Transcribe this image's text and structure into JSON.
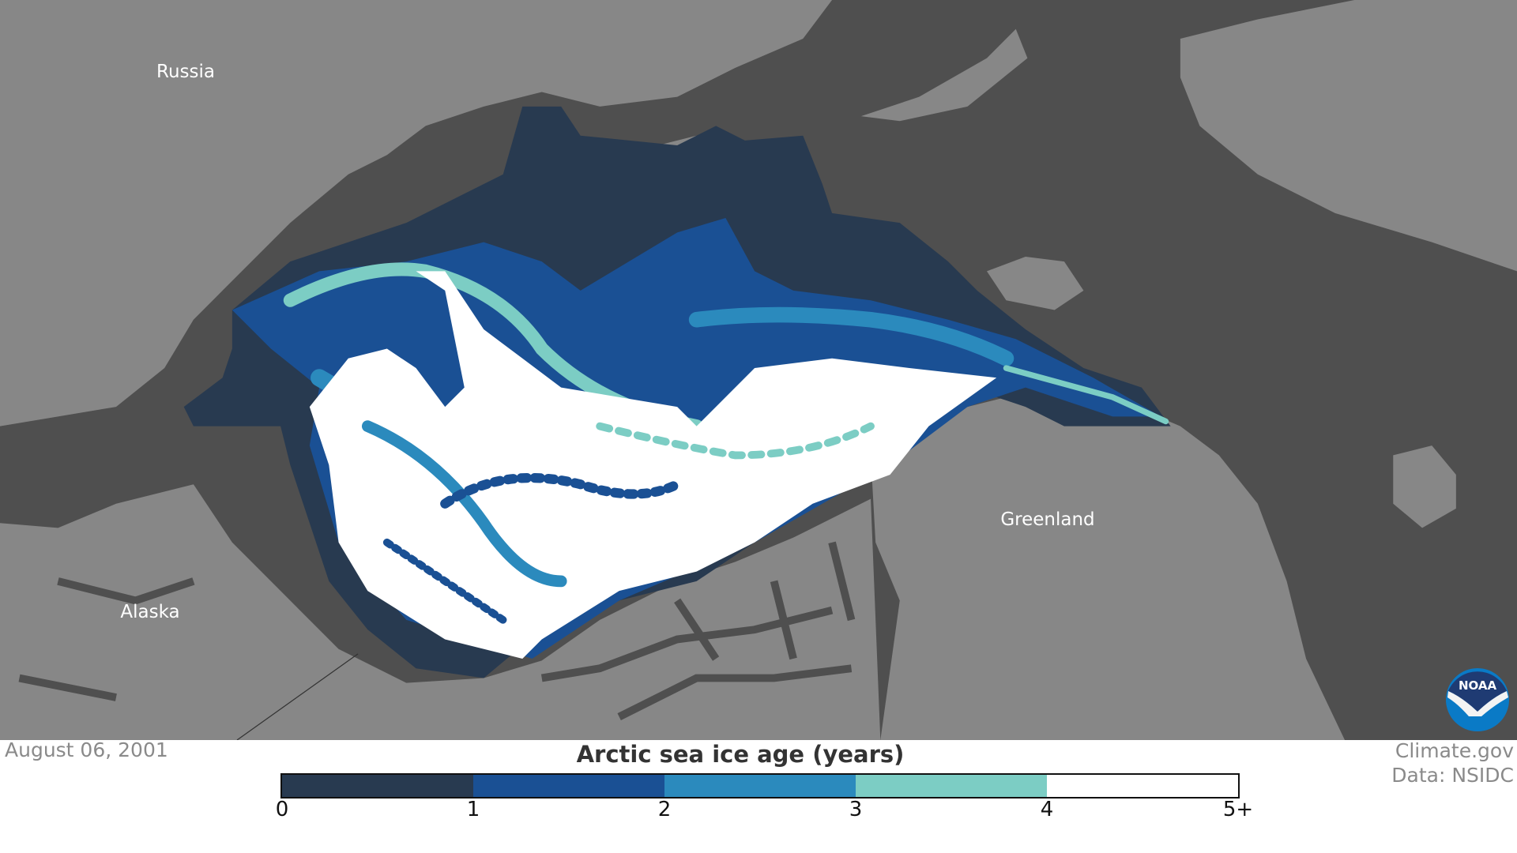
{
  "map": {
    "labels": {
      "russia": "Russia",
      "alaska": "Alaska",
      "greenland": "Greenland"
    },
    "colors": {
      "ocean": "#4f4f4f",
      "land": "#878787"
    }
  },
  "date": "August 06, 2001",
  "legend": {
    "title": "Arctic sea ice age (years)",
    "bins": [
      {
        "range": "0-1",
        "color": "#283a50"
      },
      {
        "range": "1-2",
        "color": "#1a5094"
      },
      {
        "range": "2-3",
        "color": "#2b8abd"
      },
      {
        "range": "3-4",
        "color": "#7ccdc4"
      },
      {
        "range": "4-5+",
        "color": "#ffffff"
      }
    ],
    "ticks": [
      "0",
      "1",
      "2",
      "3",
      "4",
      "5+"
    ]
  },
  "credit": {
    "line1": "Climate.gov",
    "line2": "Data: NSIDC"
  },
  "logo": {
    "text": "NOAA",
    "icon": "noaa-logo"
  }
}
